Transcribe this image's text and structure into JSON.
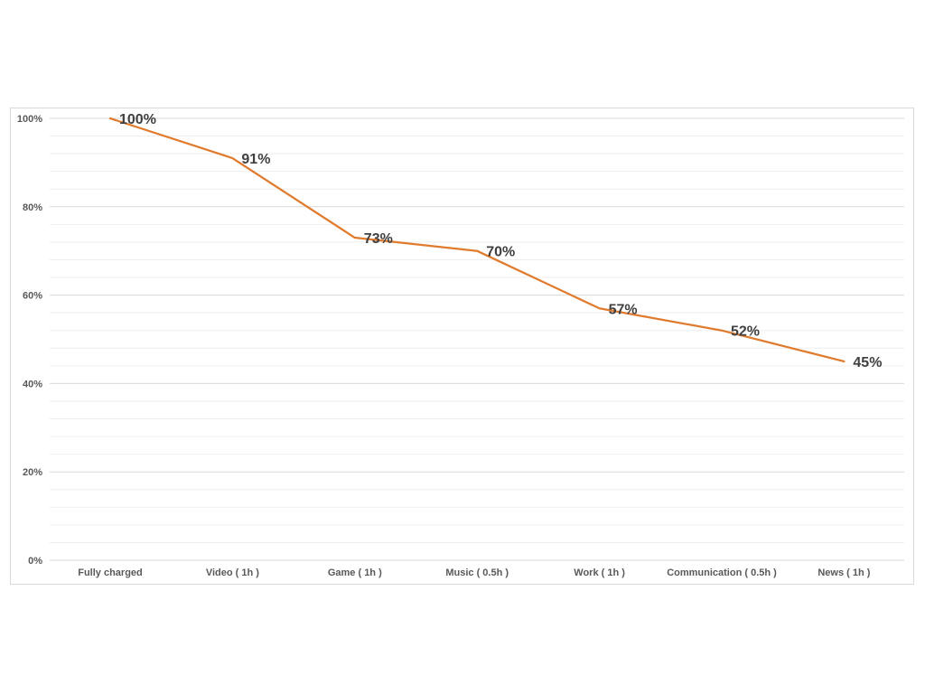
{
  "chart_data": {
    "type": "line",
    "title": "",
    "xlabel": "",
    "ylabel": "",
    "categories": [
      "Fully charged",
      "Video ( 1h )",
      "Game ( 1h )",
      "Music ( 0.5h )",
      "Work ( 1h )",
      "Communication ( 0.5h )",
      "News ( 1h )"
    ],
    "series": [
      {
        "values": [
          100,
          91,
          73,
          70,
          57,
          52,
          45
        ],
        "labels": [
          "100%",
          "91%",
          "73%",
          "70%",
          "57%",
          "52%",
          "45%"
        ],
        "color": "#e07b2e"
      }
    ],
    "ylim": [
      0,
      100
    ],
    "y_ticks": [
      0,
      20,
      40,
      60,
      80,
      100
    ],
    "y_tick_labels": [
      "0%",
      "20%",
      "40%",
      "60%",
      "80%",
      "100%"
    ],
    "grid": true,
    "minor_grid": true,
    "legend": "none",
    "colors": {
      "line": "#e07b2e",
      "major_grid": "#d9d9d9",
      "minor_grid": "#eeeeee",
      "axis": "#d9d9d9",
      "text": "#595959"
    }
  }
}
